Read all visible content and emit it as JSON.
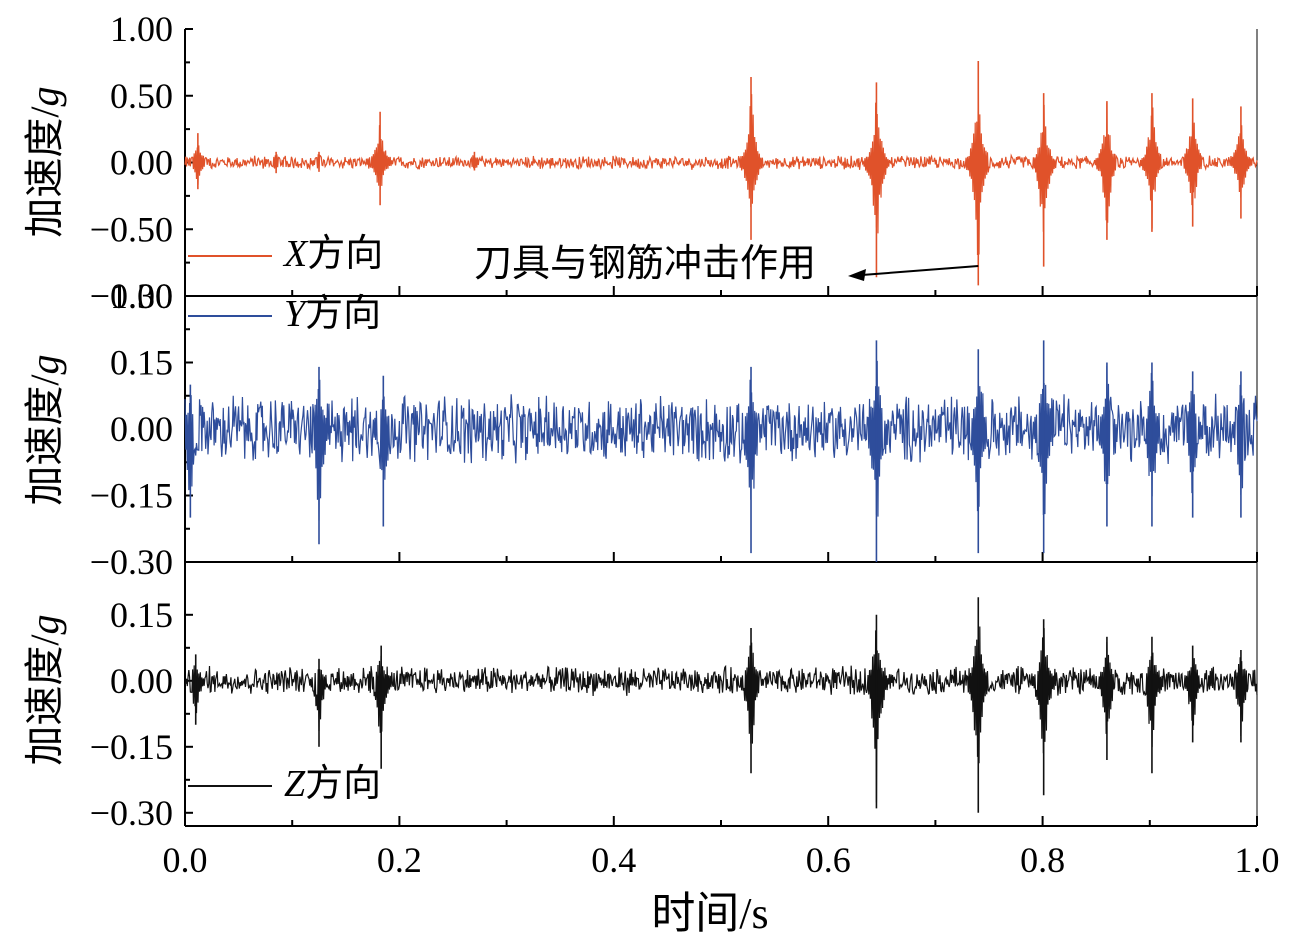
{
  "chart_data": {
    "type": "line",
    "x_label": "时间/s",
    "x_range": [
      0.0,
      1.0
    ],
    "x_ticks": [
      "0.0",
      "0.2",
      "0.4",
      "0.6",
      "0.8",
      "1.0"
    ],
    "annotation": {
      "text": "刀具与钢筋冲击作用",
      "points_to_x": 0.74
    },
    "panels": [
      {
        "series_name_italic": "X",
        "series_name_suffix": "方向",
        "color": "#e0522a",
        "y_label_main": "加速度/",
        "y_label_unit": "g",
        "ylim": [
          -1.0,
          1.0
        ],
        "y_ticks": [
          "1.00",
          "0.50",
          "0.00",
          "−0.50",
          "−1.00"
        ],
        "noise_amplitude": 0.04,
        "spikes": [
          {
            "x": 0.012,
            "max": 0.22,
            "min": -0.2
          },
          {
            "x": 0.085,
            "max": 0.08,
            "min": -0.08
          },
          {
            "x": 0.125,
            "max": 0.08,
            "min": -0.07
          },
          {
            "x": 0.182,
            "max": 0.38,
            "min": -0.32
          },
          {
            "x": 0.27,
            "max": 0.08,
            "min": -0.06
          },
          {
            "x": 0.528,
            "max": 0.64,
            "min": -0.58
          },
          {
            "x": 0.645,
            "max": 0.6,
            "min": -0.86
          },
          {
            "x": 0.74,
            "max": 0.76,
            "min": -0.92
          },
          {
            "x": 0.801,
            "max": 0.52,
            "min": -0.78
          },
          {
            "x": 0.86,
            "max": 0.46,
            "min": -0.58
          },
          {
            "x": 0.902,
            "max": 0.52,
            "min": -0.52
          },
          {
            "x": 0.94,
            "max": 0.48,
            "min": -0.48
          },
          {
            "x": 0.985,
            "max": 0.42,
            "min": -0.42
          }
        ]
      },
      {
        "series_name_italic": "Y",
        "series_name_suffix": "方向",
        "color": "#2e4d9b",
        "y_label_main": "加速度/",
        "y_label_unit": "g",
        "ylim": [
          -0.3,
          0.3
        ],
        "y_ticks": [
          "0.30",
          "0.15",
          "0.00",
          "−0.15",
          "−0.30"
        ],
        "noise_amplitude": 0.06,
        "spikes": [
          {
            "x": 0.005,
            "max": 0.1,
            "min": -0.2
          },
          {
            "x": 0.125,
            "max": 0.14,
            "min": -0.26
          },
          {
            "x": 0.185,
            "max": 0.12,
            "min": -0.22
          },
          {
            "x": 0.528,
            "max": 0.14,
            "min": -0.28
          },
          {
            "x": 0.645,
            "max": 0.2,
            "min": -0.3
          },
          {
            "x": 0.74,
            "max": 0.18,
            "min": -0.28
          },
          {
            "x": 0.801,
            "max": 0.2,
            "min": -0.28
          },
          {
            "x": 0.86,
            "max": 0.15,
            "min": -0.22
          },
          {
            "x": 0.902,
            "max": 0.15,
            "min": -0.22
          },
          {
            "x": 0.94,
            "max": 0.13,
            "min": -0.2
          },
          {
            "x": 0.985,
            "max": 0.13,
            "min": -0.2
          }
        ]
      },
      {
        "series_name_italic": "Z",
        "series_name_suffix": "方向",
        "color": "#111111",
        "y_label_main": "加速度/",
        "y_label_unit": "g",
        "ylim": [
          -0.33,
          0.27
        ],
        "y_ticks": [
          "0.15",
          "0.00",
          "−0.15",
          "−0.30"
        ],
        "noise_amplitude": 0.025,
        "spikes": [
          {
            "x": 0.01,
            "max": 0.06,
            "min": -0.1
          },
          {
            "x": 0.125,
            "max": 0.05,
            "min": -0.15
          },
          {
            "x": 0.183,
            "max": 0.08,
            "min": -0.2
          },
          {
            "x": 0.528,
            "max": 0.12,
            "min": -0.21
          },
          {
            "x": 0.645,
            "max": 0.15,
            "min": -0.29
          },
          {
            "x": 0.74,
            "max": 0.19,
            "min": -0.3
          },
          {
            "x": 0.801,
            "max": 0.14,
            "min": -0.26
          },
          {
            "x": 0.86,
            "max": 0.1,
            "min": -0.18
          },
          {
            "x": 0.902,
            "max": 0.1,
            "min": -0.21
          },
          {
            "x": 0.94,
            "max": 0.08,
            "min": -0.14
          },
          {
            "x": 0.985,
            "max": 0.07,
            "min": -0.14
          }
        ]
      }
    ]
  }
}
